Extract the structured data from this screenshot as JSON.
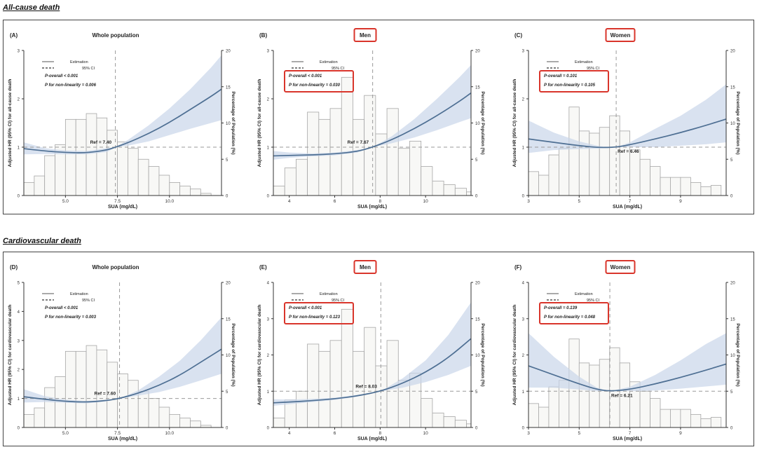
{
  "sections": [
    {
      "title": "All-cause death"
    },
    {
      "title": "Cardiovascular death"
    }
  ],
  "legend": {
    "estimation": "Estimation",
    "ci": "95% CI"
  },
  "highlight_color": "#d9352b",
  "curve_color": "#4e6f93",
  "ci_color": "#c9d6ea",
  "chart_data": [
    {
      "type": "line",
      "letter": "(A)",
      "title": "Whole population",
      "title_boxed": false,
      "xlabel": "SUA (mg/dL)",
      "ylabel": "Adjusted HR (95% CI) for all-cause death",
      "y2label": "Percentage of Population (%)",
      "xlim": [
        3.0,
        12.5
      ],
      "ylim": [
        0,
        3
      ],
      "y2lim": [
        0,
        20
      ],
      "xticks": [
        "5.0",
        "7.5",
        "10.0"
      ],
      "xtick_values": [
        5.0,
        7.5,
        10.0
      ],
      "yticks": [
        "0",
        "1",
        "2",
        "3"
      ],
      "y2ticks": [
        "0",
        "5",
        "10",
        "15",
        "20"
      ],
      "ref_label": "Ref = 7.40",
      "ref_x": 7.4,
      "ref_hr": 1.0,
      "stats": [
        "P-overall < 0.001",
        "P for non-linearity = 0.006"
      ],
      "stats_boxed": false,
      "curve": {
        "x": [
          3.0,
          4.0,
          5.0,
          6.0,
          7.0,
          7.4,
          8.0,
          9.0,
          10.0,
          11.0,
          12.0,
          12.5
        ],
        "hr": [
          0.97,
          0.92,
          0.89,
          0.88,
          0.94,
          1.0,
          1.09,
          1.28,
          1.51,
          1.78,
          2.05,
          2.2
        ],
        "lower": [
          0.85,
          0.86,
          0.85,
          0.85,
          0.9,
          1.0,
          1.03,
          1.12,
          1.25,
          1.38,
          1.5,
          1.56
        ],
        "upper": [
          1.1,
          0.98,
          0.93,
          0.92,
          0.98,
          1.0,
          1.15,
          1.45,
          1.8,
          2.2,
          2.65,
          2.9
        ]
      },
      "histogram": {
        "bin_start": 3.0,
        "bin_width": 0.5,
        "percent": [
          1.8,
          2.7,
          5.5,
          7.0,
          10.5,
          10.5,
          11.3,
          10.7,
          9.0,
          7.4,
          6.5,
          5.0,
          4.0,
          2.8,
          1.8,
          1.3,
          0.9,
          0.3
        ]
      }
    },
    {
      "type": "line",
      "letter": "(B)",
      "title": "Men",
      "title_boxed": true,
      "xlabel": "SUA (mg/dL)",
      "ylabel": "Adjusted HR (95% CI) for all-cause death",
      "y2label": "Percentage of Population (%)",
      "xlim": [
        3.3,
        12.0
      ],
      "ylim": [
        0,
        3
      ],
      "y2lim": [
        0,
        20
      ],
      "xticks": [
        "4",
        "6",
        "8",
        "10"
      ],
      "xtick_values": [
        4,
        6,
        8,
        10
      ],
      "yticks": [
        "0",
        "1",
        "2",
        "3"
      ],
      "y2ticks": [
        "0",
        "5",
        "10",
        "15",
        "20"
      ],
      "ref_label": "Ref = 7.67",
      "ref_x": 7.67,
      "ref_hr": 1.0,
      "stats": [
        "P-overall < 0.001",
        "P for non-linearity = 0.030"
      ],
      "stats_boxed": true,
      "curve": {
        "x": [
          3.3,
          4.0,
          5.0,
          6.0,
          7.0,
          7.67,
          8.5,
          9.5,
          10.5,
          11.5,
          12.0
        ],
        "hr": [
          0.82,
          0.83,
          0.84,
          0.86,
          0.91,
          1.0,
          1.15,
          1.38,
          1.65,
          1.95,
          2.12
        ],
        "lower": [
          0.74,
          0.78,
          0.81,
          0.83,
          0.89,
          1.0,
          1.08,
          1.2,
          1.35,
          1.52,
          1.6
        ],
        "upper": [
          0.92,
          0.89,
          0.87,
          0.89,
          0.94,
          1.0,
          1.22,
          1.58,
          2.0,
          2.45,
          2.7
        ]
      },
      "histogram": {
        "bin_start": 3.3,
        "bin_width": 0.5,
        "percent": [
          1.3,
          3.8,
          5.0,
          11.5,
          10.5,
          12.0,
          16.3,
          10.5,
          13.8,
          8.5,
          12.0,
          6.5,
          7.5,
          4.0,
          2.0,
          1.5,
          1.0,
          0.5
        ]
      }
    },
    {
      "type": "line",
      "letter": "(C)",
      "title": "Women",
      "title_boxed": true,
      "xlabel": "SUA (mg/dL)",
      "ylabel": "Adjusted HR (95% CI) for all-cause death",
      "y2label": "Percentage of Population (%)",
      "xlim": [
        3.0,
        10.8
      ],
      "ylim": [
        0,
        3
      ],
      "y2lim": [
        0,
        20
      ],
      "xticks": [
        "3",
        "5",
        "7",
        "9"
      ],
      "xtick_values": [
        3,
        5,
        7,
        9
      ],
      "yticks": [
        "0",
        "1",
        "2",
        "3"
      ],
      "y2ticks": [
        "0",
        "5",
        "10",
        "15",
        "20"
      ],
      "ref_label": "Ref = 6.46",
      "ref_x": 6.46,
      "ref_hr": 1.0,
      "stats": [
        "P-overall = 0.101",
        "P for non-linearity = 0.105"
      ],
      "stats_boxed": true,
      "curve": {
        "x": [
          3.0,
          4.0,
          5.0,
          5.8,
          6.46,
          7.0,
          8.0,
          9.0,
          10.0,
          10.8
        ],
        "hr": [
          1.17,
          1.1,
          1.03,
          0.99,
          1.0,
          1.05,
          1.17,
          1.3,
          1.45,
          1.58
        ],
        "lower": [
          0.88,
          0.94,
          0.96,
          0.97,
          1.0,
          1.0,
          1.0,
          1.03,
          1.06,
          1.1
        ],
        "upper": [
          1.55,
          1.3,
          1.12,
          1.02,
          1.0,
          1.1,
          1.38,
          1.65,
          1.98,
          2.3
        ]
      },
      "histogram": {
        "bin_start": 3.0,
        "bin_width": 0.4,
        "percent": [
          3.3,
          2.8,
          5.6,
          6.5,
          12.2,
          8.9,
          8.6,
          9.4,
          11.0,
          8.9,
          6.3,
          5.0,
          4.0,
          2.5,
          2.5,
          2.5,
          1.8,
          1.2,
          1.4
        ]
      }
    },
    {
      "type": "line",
      "letter": "(D)",
      "title": "Whole population",
      "title_boxed": false,
      "xlabel": "SUA (mg/dL)",
      "ylabel": "Adjusted HR (95% CI) for cardiovascular death",
      "y2label": "Percentage of Population (%)",
      "xlim": [
        3.0,
        12.5
      ],
      "ylim": [
        0,
        5
      ],
      "y2lim": [
        0,
        20
      ],
      "xticks": [
        "5.0",
        "7.5",
        "10.0"
      ],
      "xtick_values": [
        5.0,
        7.5,
        10.0
      ],
      "yticks": [
        "0",
        "1",
        "2",
        "3",
        "4",
        "5"
      ],
      "y2ticks": [
        "0",
        "5",
        "10",
        "15",
        "20"
      ],
      "ref_label": "Ref = 7.60",
      "ref_x": 7.6,
      "ref_hr": 1.0,
      "stats": [
        "P-overall < 0.001",
        "P for non-linearity = 0.003"
      ],
      "stats_boxed": false,
      "curve": {
        "x": [
          3.0,
          4.0,
          5.0,
          6.0,
          7.0,
          7.6,
          8.5,
          9.5,
          10.5,
          11.5,
          12.5
        ],
        "hr": [
          1.06,
          0.97,
          0.9,
          0.87,
          0.93,
          1.0,
          1.18,
          1.45,
          1.8,
          2.25,
          2.7
        ],
        "lower": [
          0.86,
          0.88,
          0.85,
          0.83,
          0.9,
          1.0,
          1.1,
          1.22,
          1.4,
          1.62,
          1.85
        ],
        "upper": [
          1.32,
          1.08,
          0.96,
          0.91,
          0.96,
          1.0,
          1.28,
          1.75,
          2.3,
          3.0,
          3.8
        ]
      },
      "histogram": {
        "bin_start": 3.0,
        "bin_width": 0.5,
        "percent": [
          1.8,
          2.7,
          5.5,
          7.0,
          10.5,
          10.5,
          11.3,
          10.7,
          9.0,
          7.4,
          6.5,
          5.0,
          4.0,
          2.8,
          1.8,
          1.3,
          0.9,
          0.3
        ]
      }
    },
    {
      "type": "line",
      "letter": "(E)",
      "title": "Men",
      "title_boxed": true,
      "xlabel": "SUA (mg/dL)",
      "ylabel": "Adjusted HR (95% CI) for cardiovascular death",
      "y2label": "Percentage of Population (%)",
      "xlim": [
        3.3,
        12.0
      ],
      "ylim": [
        0,
        4
      ],
      "y2lim": [
        0,
        20
      ],
      "xticks": [
        "4",
        "6",
        "8",
        "10"
      ],
      "xtick_values": [
        4,
        6,
        8,
        10
      ],
      "yticks": [
        "0",
        "1",
        "2",
        "3",
        "4"
      ],
      "y2ticks": [
        "0",
        "5",
        "10",
        "15",
        "20"
      ],
      "ref_label": "Ref = 8.03",
      "ref_x": 8.03,
      "ref_hr": 1.0,
      "stats": [
        "P-overall < 0.001",
        "P for non-linearity = 0.123"
      ],
      "stats_boxed": true,
      "curve": {
        "x": [
          3.3,
          4.0,
          5.0,
          6.0,
          7.0,
          8.03,
          9.0,
          10.0,
          11.0,
          12.0
        ],
        "hr": [
          0.68,
          0.7,
          0.74,
          0.79,
          0.87,
          1.0,
          1.22,
          1.52,
          1.92,
          2.45
        ],
        "lower": [
          0.6,
          0.64,
          0.7,
          0.76,
          0.85,
          1.0,
          1.1,
          1.25,
          1.45,
          1.7
        ],
        "upper": [
          0.78,
          0.77,
          0.79,
          0.82,
          0.9,
          1.0,
          1.36,
          1.85,
          2.55,
          3.45
        ]
      },
      "histogram": {
        "bin_start": 3.3,
        "bin_width": 0.5,
        "percent": [
          1.3,
          3.8,
          5.0,
          11.5,
          10.5,
          12.0,
          16.3,
          10.5,
          13.8,
          8.5,
          12.0,
          6.5,
          7.5,
          4.0,
          2.0,
          1.5,
          1.0,
          0.5
        ]
      }
    },
    {
      "type": "line",
      "letter": "(F)",
      "title": "Women",
      "title_boxed": true,
      "xlabel": "SUA (mg/dL)",
      "ylabel": "Adjusted HR (95% CI) for cardiovascular death",
      "y2label": "Percentage of Population (%)",
      "xlim": [
        3.0,
        10.8
      ],
      "ylim": [
        0,
        4
      ],
      "y2lim": [
        0,
        20
      ],
      "xticks": [
        "3",
        "5",
        "7",
        "9"
      ],
      "xtick_values": [
        3,
        5,
        7,
        9
      ],
      "yticks": [
        "0",
        "1",
        "2",
        "3",
        "4"
      ],
      "y2ticks": [
        "0",
        "5",
        "10",
        "15",
        "20"
      ],
      "ref_label": "Ref = 6.21",
      "ref_x": 6.21,
      "ref_hr": 1.0,
      "stats": [
        "P-overall = 0.139",
        "P for non-linearity = 0.048"
      ],
      "stats_boxed": true,
      "curve": {
        "x": [
          3.0,
          4.0,
          5.0,
          5.7,
          6.21,
          7.0,
          8.0,
          9.0,
          10.0,
          10.8
        ],
        "hr": [
          1.7,
          1.45,
          1.2,
          1.05,
          1.0,
          1.05,
          1.2,
          1.38,
          1.58,
          1.75
        ],
        "lower": [
          1.1,
          1.1,
          1.05,
          1.0,
          1.0,
          1.0,
          1.02,
          1.07,
          1.13,
          1.18
        ],
        "upper": [
          2.6,
          1.95,
          1.4,
          1.1,
          1.0,
          1.12,
          1.45,
          1.85,
          2.3,
          2.6
        ]
      },
      "histogram": {
        "bin_start": 3.0,
        "bin_width": 0.4,
        "percent": [
          3.3,
          2.8,
          5.6,
          6.5,
          12.2,
          8.9,
          8.6,
          9.4,
          11.0,
          8.9,
          6.3,
          5.0,
          4.0,
          2.5,
          2.5,
          2.5,
          1.8,
          1.2,
          1.4
        ]
      }
    }
  ]
}
